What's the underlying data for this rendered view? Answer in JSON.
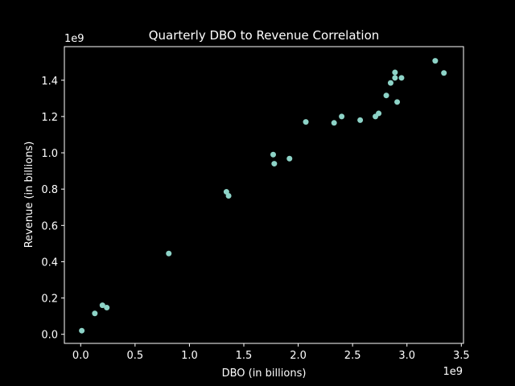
{
  "chart_data": {
    "type": "scatter",
    "title": "Quarterly DBO to Revenue Correlation",
    "xlabel": "DBO (in billions)",
    "ylabel": "Revenue (in billions)",
    "x_offset_label": "1e9",
    "y_offset_label": "1e9",
    "xlim": [
      -0.15,
      3.52
    ],
    "ylim": [
      -0.05,
      1.585
    ],
    "xticks": [
      0.0,
      0.5,
      1.0,
      1.5,
      2.0,
      2.5,
      3.0,
      3.5
    ],
    "xtick_labels": [
      "0.0",
      "0.5",
      "1.0",
      "1.5",
      "2.0",
      "2.5",
      "3.0",
      "3.5"
    ],
    "yticks": [
      0.0,
      0.2,
      0.4,
      0.6,
      0.8,
      1.0,
      1.2,
      1.4
    ],
    "ytick_labels": [
      "0.0",
      "0.2",
      "0.4",
      "0.6",
      "0.8",
      "1.0",
      "1.2",
      "1.4"
    ],
    "grid": false,
    "points": [
      {
        "x": 0.01,
        "y": 0.02
      },
      {
        "x": 0.13,
        "y": 0.115
      },
      {
        "x": 0.2,
        "y": 0.16
      },
      {
        "x": 0.24,
        "y": 0.147
      },
      {
        "x": 0.81,
        "y": 0.445
      },
      {
        "x": 1.34,
        "y": 0.785
      },
      {
        "x": 1.36,
        "y": 0.763
      },
      {
        "x": 1.77,
        "y": 0.99
      },
      {
        "x": 1.78,
        "y": 0.94
      },
      {
        "x": 1.92,
        "y": 0.968
      },
      {
        "x": 2.07,
        "y": 1.17
      },
      {
        "x": 2.33,
        "y": 1.165
      },
      {
        "x": 2.4,
        "y": 1.2
      },
      {
        "x": 2.57,
        "y": 1.18
      },
      {
        "x": 2.71,
        "y": 1.2
      },
      {
        "x": 2.74,
        "y": 1.217
      },
      {
        "x": 2.81,
        "y": 1.316
      },
      {
        "x": 2.85,
        "y": 1.385
      },
      {
        "x": 2.89,
        "y": 1.413
      },
      {
        "x": 2.89,
        "y": 1.443
      },
      {
        "x": 2.91,
        "y": 1.28
      },
      {
        "x": 2.95,
        "y": 1.413
      },
      {
        "x": 3.26,
        "y": 1.507
      },
      {
        "x": 3.34,
        "y": 1.44
      }
    ],
    "point_color": "#8dd3c7",
    "background_color": "#000000",
    "foreground_color": "#ffffff"
  }
}
